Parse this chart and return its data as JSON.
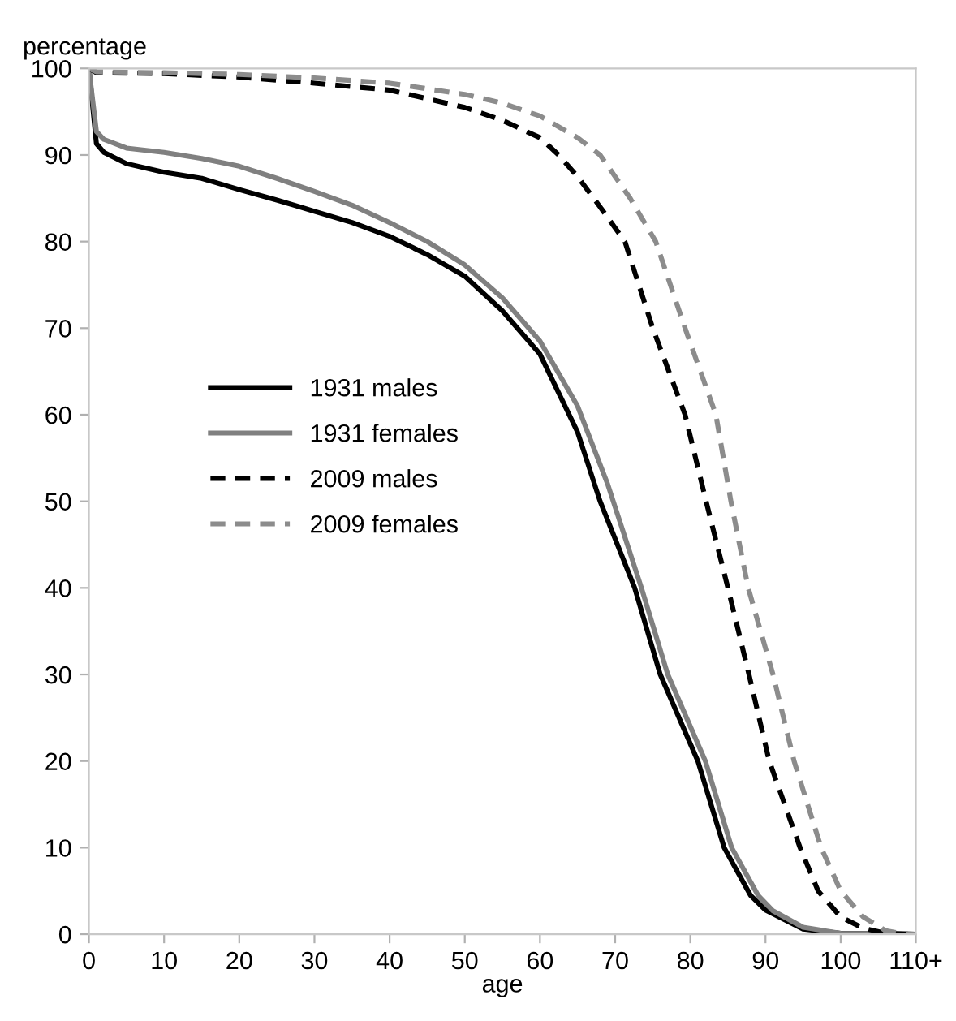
{
  "chart_data": {
    "type": "line",
    "xlabel": "age",
    "ylabel": "percentage",
    "xlim": [
      0,
      110
    ],
    "xticks": [
      0,
      10,
      20,
      30,
      40,
      50,
      60,
      70,
      80,
      90,
      100,
      {
        "value": 110,
        "label": "110+"
      }
    ],
    "ylim": [
      0,
      100
    ],
    "yticks": [
      0,
      10,
      20,
      30,
      40,
      50,
      60,
      70,
      80,
      90,
      100
    ],
    "grid": false,
    "legend": "left",
    "marker": "none",
    "series": [
      {
        "name": "1931 males",
        "color": "#000000",
        "line_style": "solid",
        "x": [
          0,
          1,
          2,
          5,
          10,
          15,
          20,
          25,
          30,
          35,
          40,
          45,
          50,
          55,
          60,
          65,
          68,
          72.6,
          76,
          81,
          84.5,
          88,
          90,
          95,
          100,
          110
        ],
        "values": [
          100,
          91.3,
          90.3,
          89,
          88,
          87.3,
          86,
          84.8,
          83.5,
          82.2,
          80.6,
          78.5,
          76,
          72,
          67,
          58,
          50,
          40,
          30,
          20,
          10,
          4.5,
          2.8,
          0.6,
          0.1,
          0
        ]
      },
      {
        "name": "1931 females",
        "color": "#808080",
        "line_style": "solid",
        "x": [
          0,
          1,
          2,
          5,
          10,
          15,
          20,
          25,
          30,
          35,
          40,
          45,
          50,
          55,
          60,
          65,
          69,
          73.5,
          77,
          82,
          85.5,
          89,
          91,
          95,
          100,
          110
        ],
        "values": [
          100,
          92.7,
          91.8,
          90.8,
          90.3,
          89.6,
          88.7,
          87.3,
          85.8,
          84.2,
          82.2,
          80,
          77.3,
          73.5,
          68.5,
          61,
          52,
          40,
          30,
          20,
          10,
          4.5,
          2.7,
          0.8,
          0.1,
          0
        ]
      },
      {
        "name": "2009 males",
        "color": "#000000",
        "line_style": "dashed",
        "x": [
          0,
          1,
          10,
          20,
          30,
          40,
          50,
          55,
          60,
          62.5,
          65,
          68,
          71.3,
          75,
          79.3,
          82.1,
          85,
          87.8,
          90.5,
          94.6,
          97,
          100,
          103,
          106,
          110
        ],
        "values": [
          100,
          99.5,
          99.4,
          99,
          98.3,
          97.5,
          95.5,
          94,
          92,
          90,
          87.5,
          84,
          80,
          70,
          60,
          50,
          40,
          30,
          20,
          10,
          5,
          2,
          0.7,
          0.1,
          0
        ]
      },
      {
        "name": "2009 females",
        "color": "#8c8c8c",
        "line_style": "dashed",
        "x": [
          0,
          1,
          10,
          20,
          30,
          40,
          50,
          55,
          60,
          65,
          68,
          72,
          75.4,
          79.3,
          83.4,
          85.4,
          87.7,
          91,
          93.8,
          97.4,
          100,
          103,
          106,
          108,
          110
        ],
        "values": [
          100,
          99.6,
          99.5,
          99.3,
          98.9,
          98.3,
          97,
          96,
          94.5,
          92,
          90,
          85,
          80,
          70,
          60,
          50,
          40,
          30,
          20,
          10,
          5,
          2,
          0.4,
          0.1,
          0
        ]
      }
    ]
  }
}
